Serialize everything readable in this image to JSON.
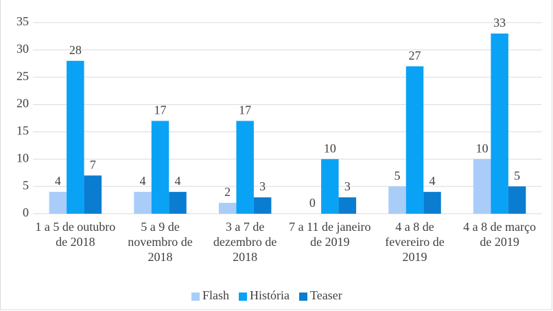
{
  "chart_data": {
    "type": "bar",
    "categories": [
      "1 a 5 de outubro de 2018",
      "5 a 9 de novembro de 2018",
      "3 a 7 de dezembro de 2018",
      "7 a 11 de janeiro de 2019",
      "4 a 8 de fevereiro de 2019",
      "4 a 8 de março de 2019"
    ],
    "series": [
      {
        "name": "Flash",
        "color": "#a9cdf8",
        "values": [
          4,
          4,
          2,
          0,
          5,
          10
        ]
      },
      {
        "name": "História",
        "color": "#0aa2f5",
        "values": [
          28,
          17,
          17,
          10,
          27,
          33
        ]
      },
      {
        "name": "Teaser",
        "color": "#0b7dd0",
        "values": [
          7,
          4,
          3,
          3,
          4,
          5
        ]
      }
    ],
    "ylim": [
      0,
      35
    ],
    "yticks": [
      0,
      5,
      10,
      15,
      20,
      25,
      30,
      35
    ],
    "grid": true,
    "legend": "bottom"
  }
}
